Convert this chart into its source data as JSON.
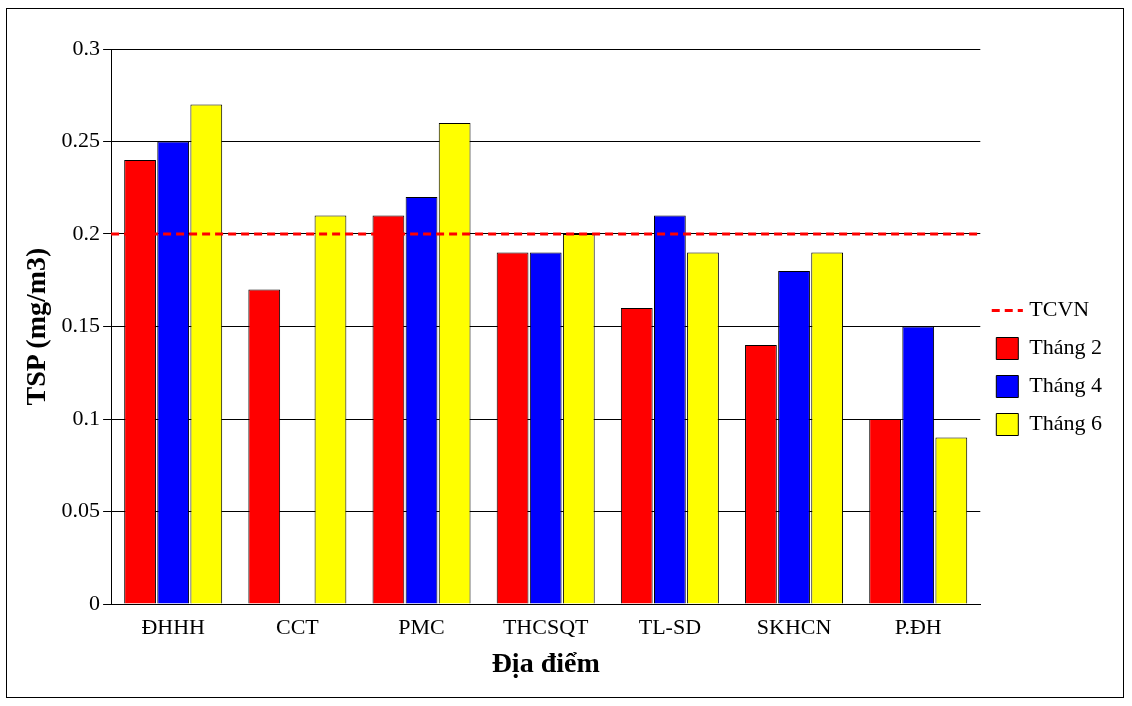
{
  "chart_data": {
    "type": "bar",
    "xlabel": "Địa điểm",
    "ylabel": "TSP (mg/m3)",
    "categories": [
      "ĐHHH",
      "CCT",
      "PMC",
      "THCSQT",
      "TL-SD",
      "SKHCN",
      "P.ĐH"
    ],
    "series": [
      {
        "name": "Tháng 2",
        "color": "#ff0000",
        "values": [
          0.24,
          0.17,
          0.21,
          0.19,
          0.16,
          0.14,
          0.1
        ]
      },
      {
        "name": "Tháng 4",
        "color": "#0000ff",
        "values": [
          0.25,
          null,
          0.22,
          0.19,
          0.21,
          0.18,
          0.15
        ]
      },
      {
        "name": "Tháng 6",
        "color": "#ffff00",
        "values": [
          0.27,
          0.21,
          0.26,
          0.2,
          0.19,
          0.19,
          0.09
        ]
      }
    ],
    "ylim": [
      0,
      0.3
    ],
    "yticks": [
      0,
      0.05,
      0.1,
      0.15,
      0.2,
      0.25,
      0.3
    ],
    "grid": "y",
    "legend": "right",
    "ref_lines": [
      {
        "axis": "y",
        "value": 0.2,
        "label": "TCVN",
        "color": "#ff0000",
        "line_style": "dashed"
      }
    ]
  }
}
